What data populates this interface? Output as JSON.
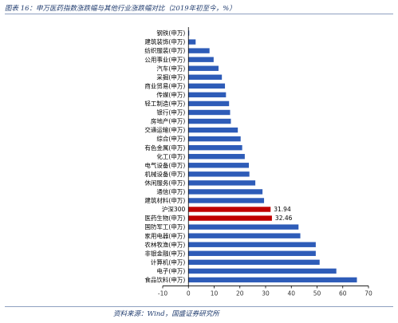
{
  "header": {
    "title": "图表 16：申万医药指数涨跌幅与其他行业涨跌幅对比（2019年初至今，%）"
  },
  "footer": {
    "source": "资料来源：Wind，国盛证券研究所"
  },
  "chart_data": {
    "type": "bar",
    "orientation": "horizontal",
    "categories": [
      "钢铁(申万)",
      "建筑装饰(申万)",
      "纺织服装(申万)",
      "公用事业(申万)",
      "汽车(申万)",
      "采掘(申万)",
      "商业贸易(申万)",
      "传媒(申万)",
      "轻工制造(申万)",
      "银行(申万)",
      "房地产(申万)",
      "交通运输(申万)",
      "综合(申万)",
      "有色金属(申万)",
      "化工(申万)",
      "电气设备(申万)",
      "机械设备(申万)",
      "休闲服务(申万)",
      "通信(申万)",
      "建筑材料(申万)",
      "沪深300",
      "医药生物(申万)",
      "国防军工(申万)",
      "家用电器(申万)",
      "农林牧渔(申万)",
      "非银金融(申万)",
      "计算机(申万)",
      "电子(申万)",
      "食品饮料(申万)"
    ],
    "values": [
      0.3,
      2.8,
      8.2,
      9.8,
      11.7,
      13.0,
      14.2,
      14.6,
      15.8,
      16.2,
      16.5,
      19.2,
      20.3,
      20.9,
      21.9,
      23.5,
      23.7,
      26.0,
      28.8,
      29.4,
      31.94,
      32.46,
      42.8,
      43.5,
      49.5,
      49.5,
      51.0,
      57.5,
      65.5
    ],
    "highlight": [
      "沪深300",
      "医药生物(申万)"
    ],
    "data_labels": {
      "沪深300": "31.94",
      "医药生物(申万)": "32.46"
    },
    "xlim": [
      -10,
      70
    ],
    "xticks": [
      -10,
      0,
      10,
      20,
      30,
      40,
      50,
      60,
      70
    ],
    "grid": false,
    "colors": {
      "bar": "#2e5cb8",
      "highlight": "#c00000",
      "title": "#1f3b6e"
    }
  }
}
